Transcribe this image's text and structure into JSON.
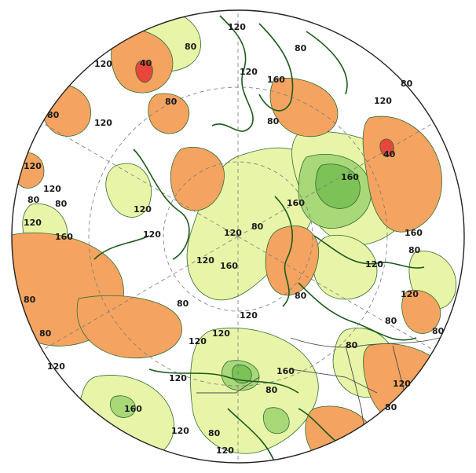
{
  "map": {
    "projection": "north-polar-stereographic",
    "colors": {
      "below_40": "#e8463b",
      "range_40_80": "#f4a460",
      "range_80_120": "#ffffff",
      "range_120_160": "#e8f5a8",
      "above_160": "#a8d878",
      "well_above_160": "#7cc257",
      "coastline": "#1c5a1c",
      "contour": "#2f6b2f",
      "graticule": "#7a7a7a",
      "boundary": "#4a4a4a"
    },
    "contour_labels": [
      {
        "text": "120"
      },
      {
        "text": "40"
      },
      {
        "text": "80"
      },
      {
        "text": "120"
      },
      {
        "text": "80"
      },
      {
        "text": "120"
      },
      {
        "text": "120"
      },
      {
        "text": "160"
      },
      {
        "text": "80"
      },
      {
        "text": "120"
      },
      {
        "text": "80"
      },
      {
        "text": "80"
      },
      {
        "text": "120"
      },
      {
        "text": "80"
      },
      {
        "text": "40"
      },
      {
        "text": "160"
      },
      {
        "text": "160"
      },
      {
        "text": "120"
      },
      {
        "text": "80"
      },
      {
        "text": "120"
      },
      {
        "text": "80"
      },
      {
        "text": "120"
      },
      {
        "text": "160"
      },
      {
        "text": "120"
      },
      {
        "text": "80"
      },
      {
        "text": "120"
      },
      {
        "text": "160"
      },
      {
        "text": "80"
      },
      {
        "text": "80"
      },
      {
        "text": "120"
      },
      {
        "text": "160"
      },
      {
        "text": "120"
      },
      {
        "text": "80"
      },
      {
        "text": "120"
      },
      {
        "text": "80"
      },
      {
        "text": "120"
      },
      {
        "text": "80"
      },
      {
        "text": "80"
      },
      {
        "text": "120"
      },
      {
        "text": "80"
      },
      {
        "text": "80"
      },
      {
        "text": "160"
      },
      {
        "text": "120"
      },
      {
        "text": "80"
      },
      {
        "text": "160"
      },
      {
        "text": "120"
      },
      {
        "text": "120"
      },
      {
        "text": "80"
      },
      {
        "text": "120"
      },
      {
        "text": "80"
      },
      {
        "text": "120"
      },
      {
        "text": "120"
      }
    ]
  }
}
